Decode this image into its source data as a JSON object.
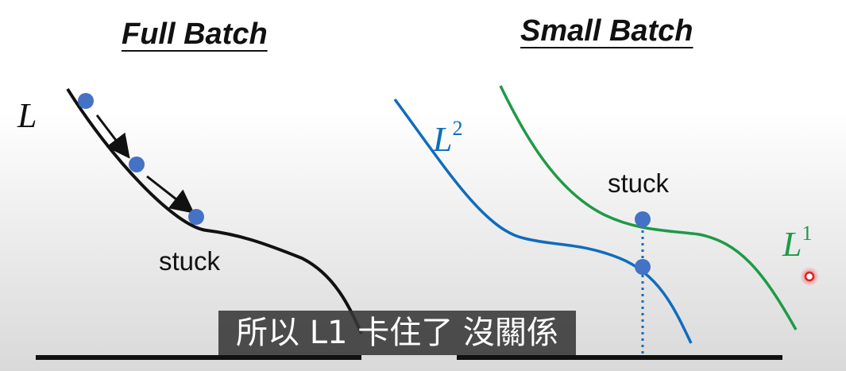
{
  "titles": {
    "left": "Full Batch",
    "right": "Small Batch"
  },
  "labels": {
    "left_loss": "L",
    "stuck_left": "stuck",
    "stuck_right": "stuck",
    "l2_base": "L",
    "l2_sup": "2",
    "l1_base": "L",
    "l1_sup": "1"
  },
  "subtitle": "所以 L1 卡住了 沒關係",
  "colors": {
    "black_curve": "#111111",
    "blue_curve": "#0f6cbd",
    "green_curve": "#1e9a47",
    "ball": "#4472c4"
  }
}
